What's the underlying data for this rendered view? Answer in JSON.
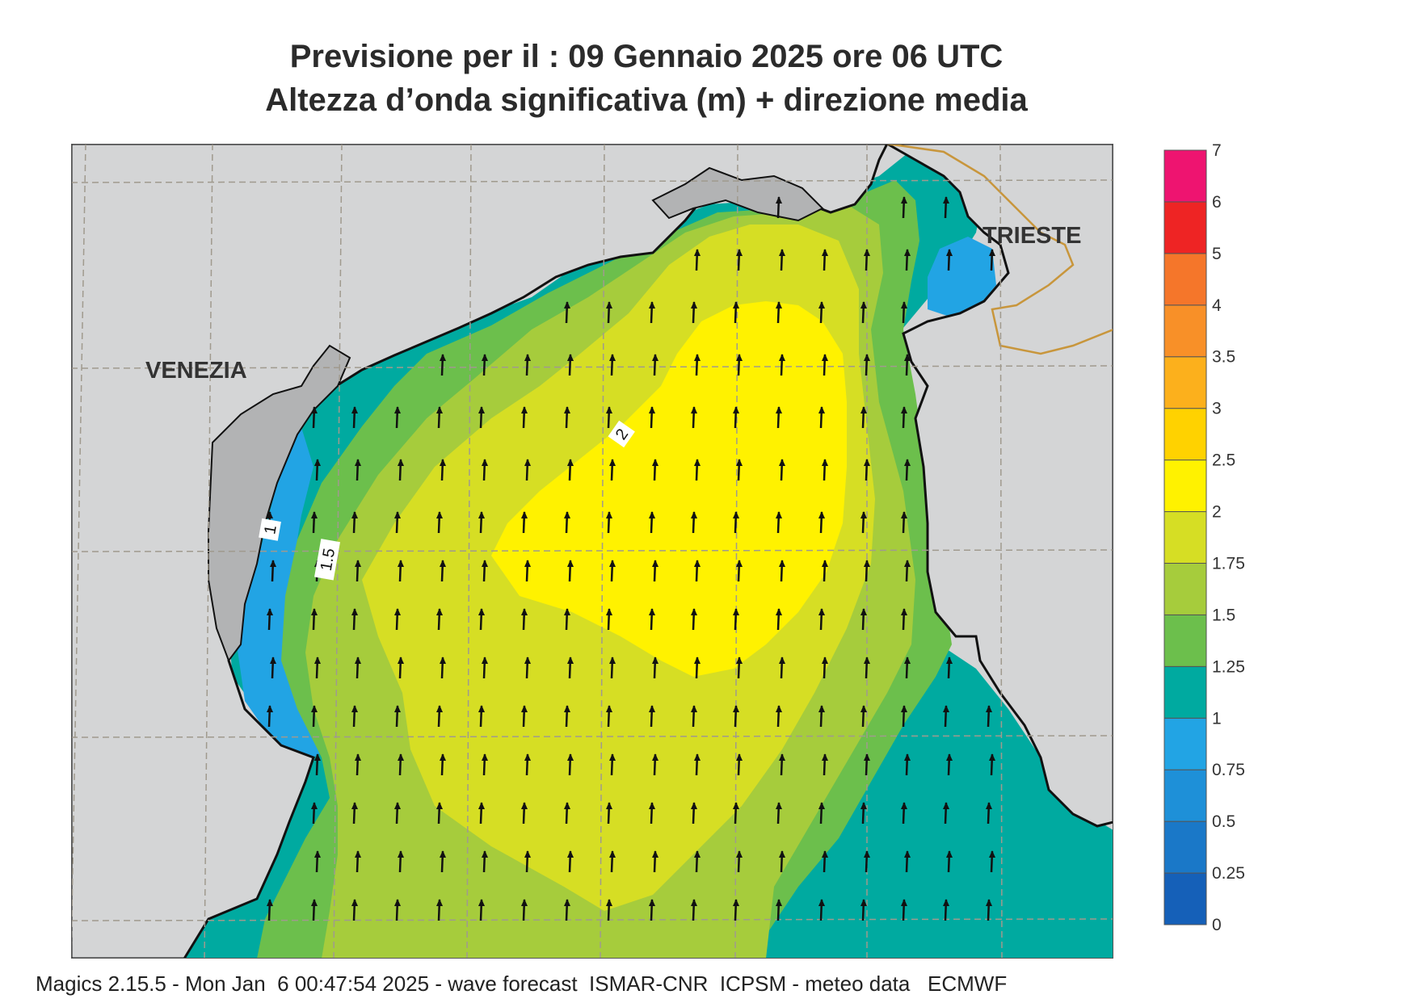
{
  "title_line1": "Previsione per il  :  09  Gennaio  2025   ore 06 UTC",
  "title_line2": "Altezza d’onda significativa (m) + direzione media",
  "footer": "Magics 2.15.5 - Mon Jan  6 00:47:54 2025 - wave forecast  ISMAR-CNR  ICPSM - meteo data   ECMWF",
  "cities": [
    {
      "name": "VENEZIA"
    },
    {
      "name": "TRIESTE"
    }
  ],
  "contour_labels": [
    "1",
    "1.5",
    "2"
  ],
  "legend": {
    "levels": [
      "0",
      "0.25",
      "0.5",
      "0.75",
      "1",
      "1.25",
      "1.5",
      "1.75",
      "2",
      "2.5",
      "3",
      "3.5",
      "4",
      "5",
      "6",
      "7"
    ],
    "colors": [
      "#1560b8",
      "#1a78c8",
      "#1e90d8",
      "#22a4e4",
      "#00aaa0",
      "#6cbf4c",
      "#a6cc3c",
      "#d6de24",
      "#fff200",
      "#ffd200",
      "#fcb01c",
      "#f89028",
      "#f5762a",
      "#ee2424",
      "#ee1470"
    ]
  },
  "colors": {
    "land": "#d4d5d6",
    "coast": "#111111",
    "border": "#c8963c",
    "grid": "#a09a8e"
  },
  "arrow_direction": "north"
}
